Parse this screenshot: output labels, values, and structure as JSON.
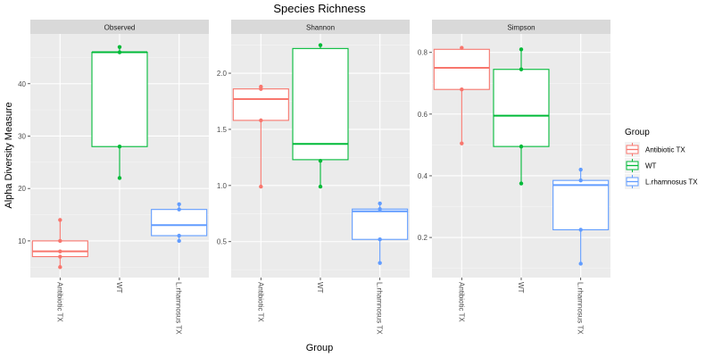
{
  "chart_data": {
    "type": "boxplot",
    "title": "Species Richness",
    "xlabel": "Group",
    "ylabel": "Alpha Diversity Measure",
    "categories": [
      "Antibiotic TX",
      "WT",
      "L.rhamnosus TX"
    ],
    "colors": {
      "Antibiotic TX": "#F8766D",
      "WT": "#00BA38",
      "L.rhamnosus TX": "#619CFF"
    },
    "panel_background": "#EBEBEB",
    "strip_background": "#D9D9D9",
    "grid": true,
    "legend": {
      "title": "Group",
      "placement": "right",
      "entries": [
        "Antibiotic TX",
        "WT",
        "L.rhamnosus TX"
      ]
    },
    "panels": [
      {
        "name": "Observed",
        "ylim": [
          3,
          49.5
        ],
        "yticks": [
          10,
          20,
          30,
          40
        ],
        "boxes": [
          {
            "group": "Antibiotic TX",
            "min": 5,
            "q1": 7,
            "median": 8,
            "q3": 10,
            "max": 14,
            "points": [
              5,
              7,
              8,
              10,
              14
            ]
          },
          {
            "group": "WT",
            "min": 22,
            "q1": 28,
            "median": 46,
            "q3": 46,
            "max": 47,
            "points": [
              22,
              28,
              46,
              47
            ]
          },
          {
            "group": "L.rhamnosus TX",
            "min": 10,
            "q1": 11,
            "median": 13,
            "q3": 16,
            "max": 17,
            "points": [
              10,
              11,
              16,
              17
            ]
          }
        ]
      },
      {
        "name": "Shannon",
        "ylim": [
          0.18,
          2.35
        ],
        "yticks": [
          0.5,
          1.0,
          1.5,
          2.0
        ],
        "ytick_labels": [
          "0.5",
          "1.0",
          "1.5",
          "2.0"
        ],
        "boxes": [
          {
            "group": "Antibiotic TX",
            "min": 0.99,
            "q1": 1.58,
            "median": 1.77,
            "q3": 1.86,
            "max": 1.88,
            "points": [
              0.99,
              1.58,
              1.86,
              1.88
            ]
          },
          {
            "group": "WT",
            "min": 0.99,
            "q1": 1.23,
            "median": 1.37,
            "q3": 2.22,
            "max": 2.25,
            "points": [
              0.99,
              1.22,
              2.25
            ]
          },
          {
            "group": "L.rhamnosus TX",
            "min": 0.31,
            "q1": 0.52,
            "median": 0.77,
            "q3": 0.79,
            "max": 0.84,
            "points": [
              0.31,
              0.52,
              0.79,
              0.84
            ]
          }
        ]
      },
      {
        "name": "Simpson",
        "ylim": [
          0.07,
          0.86
        ],
        "yticks": [
          0.2,
          0.4,
          0.6,
          0.8
        ],
        "ytick_labels": [
          "0.2",
          "0.4",
          "0.6",
          "0.8"
        ],
        "boxes": [
          {
            "group": "Antibiotic TX",
            "min": 0.505,
            "q1": 0.68,
            "median": 0.75,
            "q3": 0.81,
            "max": 0.815,
            "points": [
              0.505,
              0.68,
              0.815
            ]
          },
          {
            "group": "WT",
            "min": 0.375,
            "q1": 0.495,
            "median": 0.595,
            "q3": 0.745,
            "max": 0.81,
            "points": [
              0.375,
              0.495,
              0.745,
              0.81
            ]
          },
          {
            "group": "L.rhamnosus TX",
            "min": 0.115,
            "q1": 0.225,
            "median": 0.37,
            "q3": 0.385,
            "max": 0.42,
            "points": [
              0.115,
              0.225,
              0.385,
              0.42
            ]
          }
        ]
      }
    ]
  }
}
